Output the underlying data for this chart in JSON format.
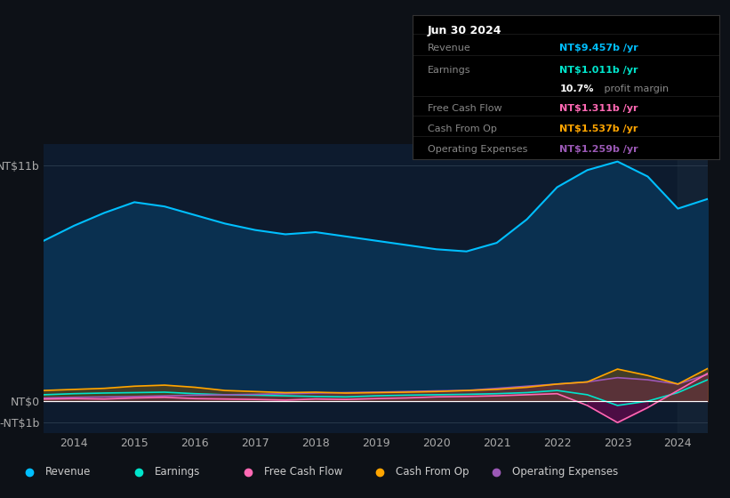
{
  "bg_color": "#0d1117",
  "plot_bg_color": "#0d1b2e",
  "box_date": "Jun 30 2024",
  "box_rows": [
    {
      "label": "Revenue",
      "value": "NT$9.457b /yr",
      "color": "#00bfff"
    },
    {
      "label": "Earnings",
      "value": "NT$1.011b /yr",
      "color": "#00e5cc"
    },
    {
      "label": "",
      "value": "10.7% profit margin",
      "color": "#ffffff"
    },
    {
      "label": "Free Cash Flow",
      "value": "NT$1.311b /yr",
      "color": "#ff69b4"
    },
    {
      "label": "Cash From Op",
      "value": "NT$1.537b /yr",
      "color": "#ffa500"
    },
    {
      "label": "Operating Expenses",
      "value": "NT$1.259b /yr",
      "color": "#9b59b6"
    }
  ],
  "years": [
    2013.5,
    2014.0,
    2014.5,
    2015.0,
    2015.5,
    2016.0,
    2016.5,
    2017.0,
    2017.5,
    2018.0,
    2018.5,
    2019.0,
    2019.5,
    2020.0,
    2020.5,
    2021.0,
    2021.5,
    2022.0,
    2022.5,
    2023.0,
    2023.5,
    2024.0,
    2024.5
  ],
  "revenue": [
    7.5,
    8.2,
    8.8,
    9.3,
    9.1,
    8.7,
    8.3,
    8.0,
    7.8,
    7.9,
    7.7,
    7.5,
    7.3,
    7.1,
    7.0,
    7.4,
    8.5,
    10.0,
    10.8,
    11.2,
    10.5,
    9.0,
    9.457
  ],
  "earnings": [
    0.3,
    0.35,
    0.38,
    0.4,
    0.42,
    0.35,
    0.3,
    0.28,
    0.25,
    0.22,
    0.2,
    0.25,
    0.28,
    0.3,
    0.32,
    0.35,
    0.4,
    0.5,
    0.3,
    -0.2,
    0.0,
    0.4,
    1.011
  ],
  "fcf": [
    0.1,
    0.12,
    0.1,
    0.15,
    0.18,
    0.12,
    0.1,
    0.08,
    0.05,
    0.1,
    0.08,
    0.12,
    0.15,
    0.2,
    0.22,
    0.25,
    0.3,
    0.35,
    -0.2,
    -1.0,
    -0.3,
    0.5,
    1.311
  ],
  "cashop": [
    0.5,
    0.55,
    0.6,
    0.7,
    0.75,
    0.65,
    0.5,
    0.45,
    0.4,
    0.42,
    0.38,
    0.4,
    0.42,
    0.45,
    0.5,
    0.55,
    0.65,
    0.8,
    0.9,
    1.5,
    1.2,
    0.8,
    1.537
  ],
  "opex": [
    0.15,
    0.18,
    0.2,
    0.22,
    0.25,
    0.28,
    0.3,
    0.32,
    0.35,
    0.38,
    0.4,
    0.42,
    0.45,
    0.48,
    0.5,
    0.6,
    0.7,
    0.8,
    0.9,
    1.1,
    1.0,
    0.8,
    1.259
  ],
  "revenue_color": "#00bfff",
  "earnings_color": "#00e5cc",
  "fcf_color": "#ff69b4",
  "cashop_color": "#ffa500",
  "opex_color": "#9b59b6",
  "legend_items": [
    {
      "label": "Revenue",
      "color": "#00bfff"
    },
    {
      "label": "Earnings",
      "color": "#00e5cc"
    },
    {
      "label": "Free Cash Flow",
      "color": "#ff69b4"
    },
    {
      "label": "Cash From Op",
      "color": "#ffa500"
    },
    {
      "label": "Operating Expenses",
      "color": "#9b59b6"
    }
  ]
}
